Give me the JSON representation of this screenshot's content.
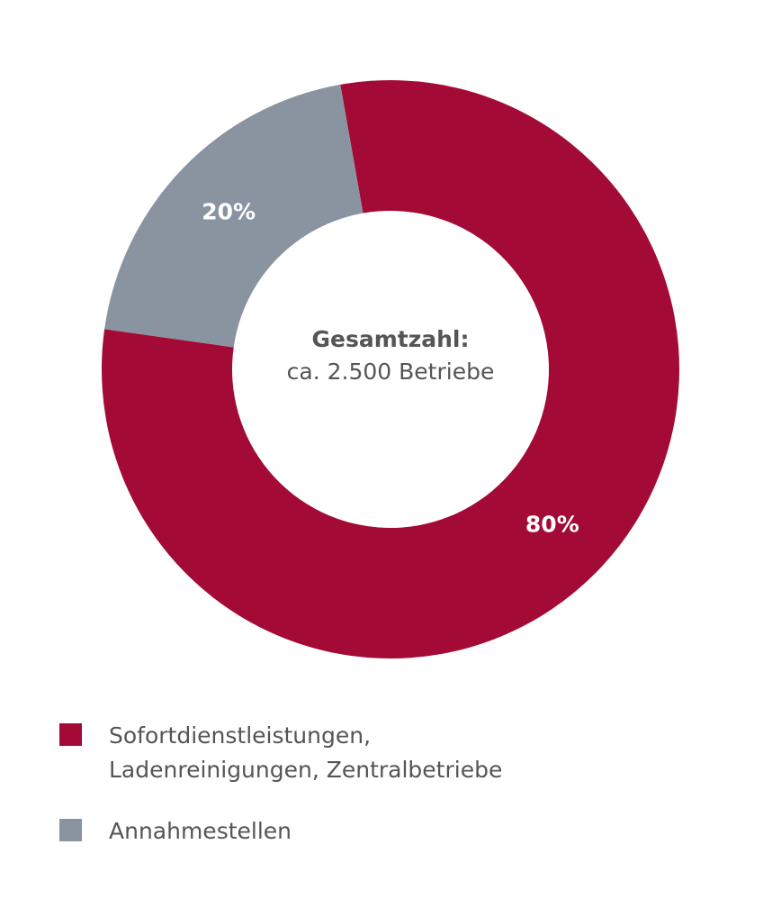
{
  "chart_data": {
    "type": "donut",
    "center_title": "Gesamtzahl:",
    "center_subtitle": "ca. 2.500 Betriebe",
    "categories": [
      "Sofortdienstleistungen, Ladenreinigungen, Zentralbetriebe",
      "Annahmestellen"
    ],
    "values": [
      80,
      20
    ],
    "value_labels": [
      "80%",
      "20%"
    ],
    "colors": [
      "#a30a35",
      "#8a94a0"
    ]
  }
}
